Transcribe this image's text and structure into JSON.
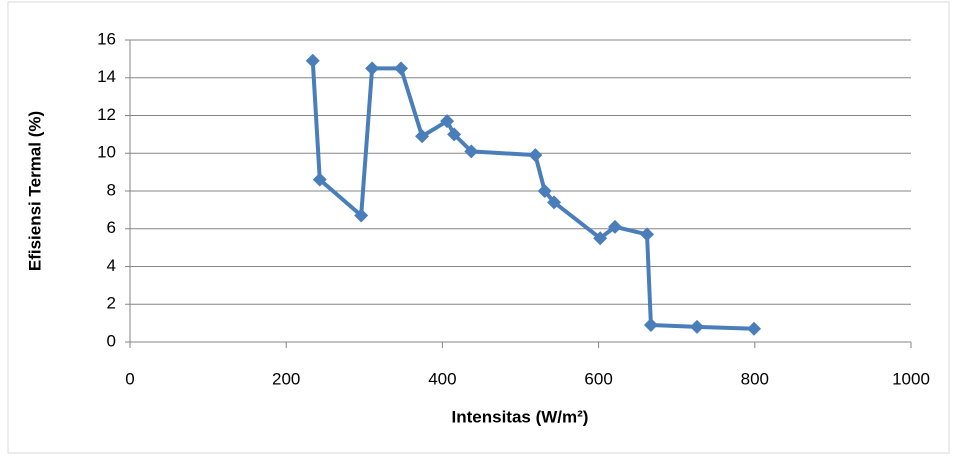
{
  "chart_data": {
    "type": "line",
    "x_label": "Intensitas (W/m²)",
    "y_label": "Efisiensi Termal (%)",
    "series": [
      {
        "color": "#4a7ebb",
        "x": [
          234,
          243,
          296,
          310,
          347,
          374,
          406,
          415,
          437,
          519,
          531,
          543,
          602,
          621,
          662,
          667,
          726,
          799
        ],
        "values": [
          14.9,
          8.6,
          6.7,
          14.5,
          14.5,
          10.9,
          11.7,
          11.0,
          10.1,
          9.9,
          8.0,
          7.4,
          5.5,
          6.1,
          5.7,
          0.9,
          0.8,
          0.7
        ]
      }
    ],
    "xlim": [
      0,
      1000
    ],
    "xticks": [
      0,
      200,
      400,
      600,
      800,
      1000
    ],
    "ylim": [
      0,
      16
    ],
    "yticks": [
      0,
      2,
      4,
      6,
      8,
      10,
      12,
      14,
      16
    ],
    "grid": true
  }
}
